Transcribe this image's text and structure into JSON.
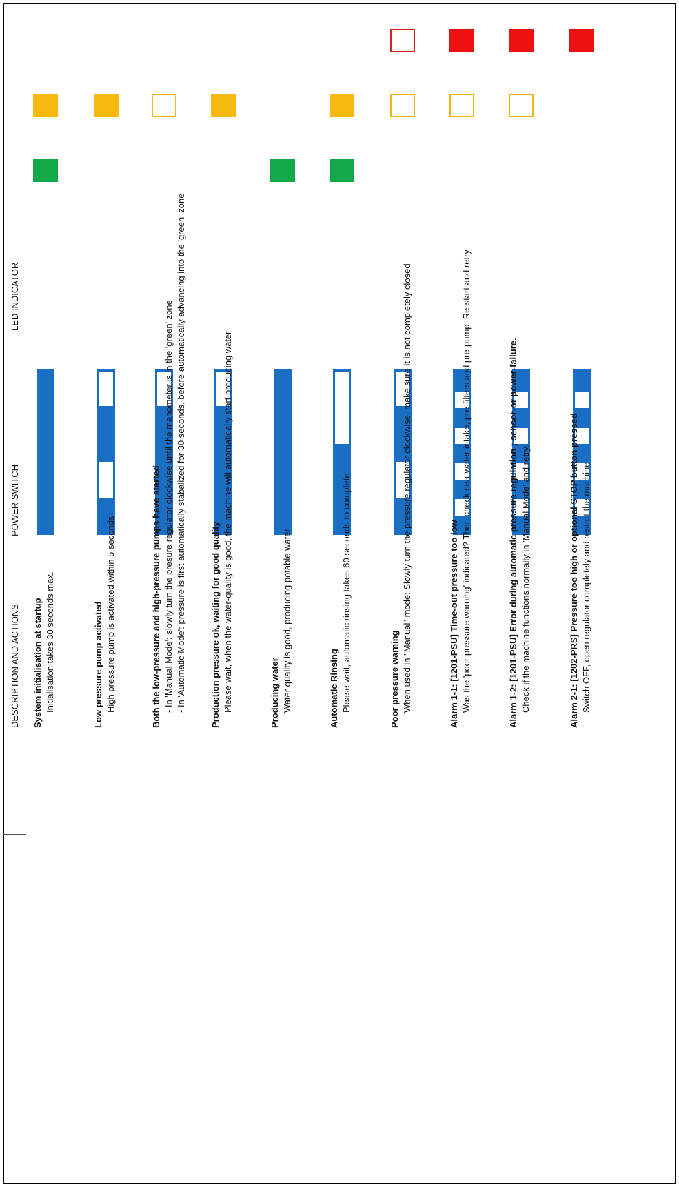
{
  "headers": {
    "led": "LED INDICATOR",
    "power": "POWER SWITCH",
    "desc": "DESCRIPTION AND ACTIONS"
  },
  "colors": {
    "red": "#ee1111",
    "amber": "#f5b90f",
    "green": "#15a84a",
    "blue": "#1a6fc4"
  },
  "rows": [
    {
      "led": {
        "red": "none",
        "amber": "on",
        "green": "on"
      },
      "power": "solid",
      "title": "System initialisation at startup",
      "lines": [
        "Initialisation takes 30 seconds max."
      ]
    },
    {
      "led": {
        "red": "none",
        "amber": "on",
        "green": "none"
      },
      "power": "pulse-2",
      "title": "Low pressure pump activated",
      "lines": [
        "High pressure pump is activated within 5 seconds"
      ]
    },
    {
      "led": {
        "red": "none",
        "amber": "off",
        "green": "none"
      },
      "power": "mostly",
      "title": "Both the low-pressure and high-pressure pumps have started",
      "lines": [
        "- In 'Manual Mode': slowly turn the presure regulator clockwise until the manometer is in the 'green' zone",
        "- In 'Automatic Mode': pressure is first automatically stabalized for 30 seconds, before automatically advancing into the 'green' zone"
      ]
    },
    {
      "led": {
        "red": "none",
        "amber": "on",
        "green": "none"
      },
      "power": "mostly",
      "title": "Production pressure ok, waiting for good quality",
      "lines": [
        "Please wait, when the water-quality is good, the machine will automatically start producing water"
      ]
    },
    {
      "led": {
        "red": "none",
        "amber": "none",
        "green": "on"
      },
      "power": "solid",
      "title": "Producing water",
      "lines": [
        "Water quality is good, producing potable water"
      ]
    },
    {
      "led": {
        "red": "none",
        "amber": "on",
        "green": "on"
      },
      "power": "half",
      "title": "Automatic Rinsing",
      "lines": [
        "Please wait, automatic rinsing takes 60 seconds to complete"
      ]
    },
    {
      "led": {
        "red": "off",
        "amber": "off",
        "green": "none"
      },
      "power": "pulse-2",
      "title": "Poor pressure warning",
      "lines": [
        "When used in \"Manual\" mode:  Slowly turn the pressure regulator clockwise, make sure it is not completely closed"
      ]
    },
    {
      "led": {
        "red": "on",
        "amber": "off",
        "green": "none"
      },
      "power": "fast",
      "title": "Alarm 1-1:  [1201-PSU] Time-out pressure too low",
      "lines": [
        "Was the 'poor pressure warning' indicated? Then check sea-water intake, pre-filters and pre-pump. Re-start and retry"
      ]
    },
    {
      "led": {
        "red": "on",
        "amber": "off",
        "green": "none"
      },
      "power": "fast",
      "title": "Alarm 1-2: [1201-PSU] Error during automatic pressure regulation ; sensor-or power-failure.",
      "lines": [
        "Check if the machine functions normally in 'Manual Mode' and retry."
      ]
    },
    {
      "led": {
        "red": "on",
        "amber": "none",
        "green": "none"
      },
      "power": "fast",
      "title": "Alarm 2-1: [1202-PRS] Pressure too high or  optional STOP button pressed",
      "lines": [
        "Switch OFF, open regulator completely and restart the machine"
      ]
    }
  ]
}
